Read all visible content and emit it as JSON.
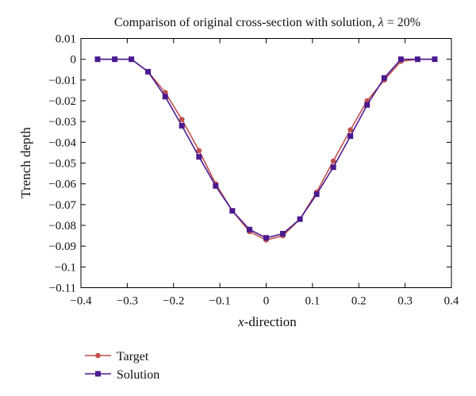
{
  "chart_data": {
    "type": "line",
    "title": "Comparison of original cross-section with solution, λ = 20%",
    "title_parts": {
      "prefix": "Comparison of original cross-section with solution, ",
      "symbol": "λ",
      "suffix": " = 20%"
    },
    "xlabel": "x-direction",
    "xlabel_parts": {
      "italic": "x",
      "rest": "-direction"
    },
    "ylabel": "Trench depth",
    "xlim": [
      -0.4,
      0.4
    ],
    "ylim": [
      -0.11,
      0.01
    ],
    "xticks": [
      -0.4,
      -0.3,
      -0.2,
      -0.1,
      0,
      0.1,
      0.2,
      0.3,
      0.4
    ],
    "xtick_labels": [
      "−0.4",
      "−0.3",
      "−0.2",
      "−0.1",
      "0",
      "0.1",
      "0.2",
      "0.3",
      "0.4"
    ],
    "yticks": [
      0.01,
      0,
      -0.01,
      -0.02,
      -0.03,
      -0.04,
      -0.05,
      -0.06,
      -0.07,
      -0.08,
      -0.09,
      -0.1,
      -0.11
    ],
    "ytick_labels": [
      "0.01",
      "0",
      "−0.01",
      "−0.02",
      "−0.03",
      "−0.04",
      "−0.05",
      "−0.06",
      "−0.07",
      "−0.08",
      "−0.09",
      "−0.1",
      "−0.11"
    ],
    "grid": false,
    "legend_position": "bottom-left",
    "series": [
      {
        "name": "Target",
        "color": "#c0504d",
        "marker": "circle",
        "x": [
          -0.364,
          -0.327,
          -0.291,
          -0.255,
          -0.218,
          -0.182,
          -0.145,
          -0.109,
          -0.073,
          -0.036,
          0,
          0.036,
          0.073,
          0.109,
          0.145,
          0.182,
          0.218,
          0.255,
          0.291,
          0.327,
          0.364
        ],
        "y": [
          0,
          0,
          0,
          -0.006,
          -0.016,
          -0.029,
          -0.044,
          -0.06,
          -0.073,
          -0.083,
          -0.087,
          -0.085,
          -0.077,
          -0.064,
          -0.049,
          -0.034,
          -0.02,
          -0.01,
          -0.001,
          0,
          0
        ]
      },
      {
        "name": "Solution",
        "color": "#4b1a8f",
        "marker": "square",
        "x": [
          -0.364,
          -0.327,
          -0.291,
          -0.255,
          -0.218,
          -0.182,
          -0.145,
          -0.109,
          -0.073,
          -0.036,
          0,
          0.036,
          0.073,
          0.109,
          0.145,
          0.182,
          0.218,
          0.255,
          0.291,
          0.327,
          0.364
        ],
        "y": [
          0,
          0,
          0,
          -0.006,
          -0.018,
          -0.032,
          -0.047,
          -0.061,
          -0.073,
          -0.082,
          -0.086,
          -0.084,
          -0.077,
          -0.065,
          -0.052,
          -0.037,
          -0.022,
          -0.009,
          0,
          0,
          0
        ]
      }
    ]
  }
}
